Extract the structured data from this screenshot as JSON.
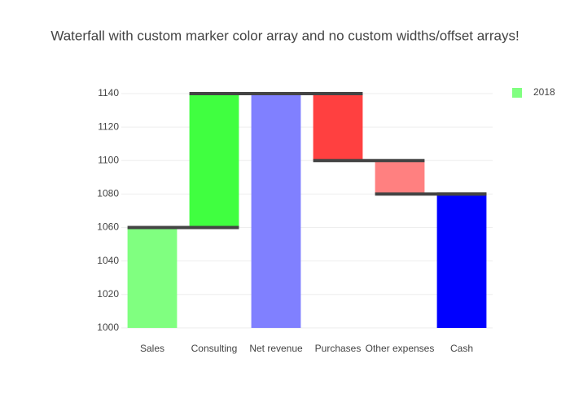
{
  "chart_data": {
    "type": "waterfall",
    "title": "Waterfall with custom marker color array and no custom widths/offset arrays!",
    "categories": [
      "Sales",
      "Consulting",
      "Net revenue",
      "Purchases",
      "Other expenses",
      "Cash"
    ],
    "base": 1000,
    "measure": [
      "relative",
      "relative",
      "total",
      "relative",
      "relative",
      "total"
    ],
    "series": [
      {
        "name": "2018",
        "color": "#80ff80",
        "values": [
          60,
          80,
          1140,
          -40,
          -20,
          1080
        ],
        "colors": [
          "#80ff80",
          "#40ff40",
          "#8080ff",
          "#ff4040",
          "#ff8080",
          "#0000ff"
        ]
      }
    ],
    "connector_color": "#444444",
    "ylim": [
      991.7,
      1147.3
    ],
    "yticks": [
      1000,
      1020,
      1040,
      1060,
      1080,
      1100,
      1120,
      1140
    ],
    "grid": true,
    "legend": "top-right"
  }
}
